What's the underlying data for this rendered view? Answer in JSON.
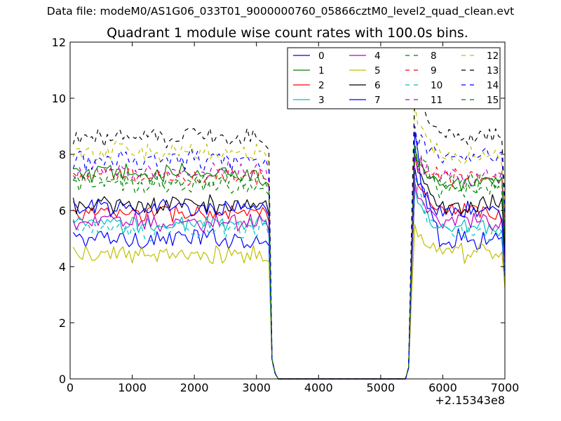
{
  "header": {
    "suptitle": "Data file: modeM0/AS1G06_033T01_9000000760_05866cztM0_level2_quad_clean.evt",
    "title": "Quadrant 1 module wise count rates with 100.0s bins."
  },
  "chart_data": {
    "type": "line",
    "title": "Quadrant 1 module wise count rates with 100.0s bins.",
    "xlabel": "",
    "ylabel": "",
    "x_offset_label": "+2.15343e8",
    "xlim": [
      0,
      7000
    ],
    "ylim": [
      0,
      12
    ],
    "xticks": [
      0,
      1000,
      2000,
      3000,
      4000,
      5000,
      6000,
      7000
    ],
    "xtick_labels": [
      "0",
      "1000",
      "2000",
      "3000",
      "4000",
      "5000",
      "6000",
      "7000"
    ],
    "yticks": [
      0,
      2,
      4,
      6,
      8,
      10,
      12
    ],
    "ytick_labels": [
      "0",
      "2",
      "4",
      "6",
      "8",
      "10",
      "12"
    ],
    "grid": false,
    "legend_position": "top-right",
    "legend_columns": 4,
    "series": [
      {
        "name": "0",
        "color": "#0000ff",
        "dash": "solid",
        "base": 5.0,
        "amp": 0.3,
        "peak": 8.8,
        "post": 5.0
      },
      {
        "name": "1",
        "color": "#008000",
        "dash": "solid",
        "base": 7.3,
        "amp": 0.3,
        "peak": 8.3,
        "post": 6.9
      },
      {
        "name": "2",
        "color": "#ff0000",
        "dash": "solid",
        "base": 5.9,
        "amp": 0.25,
        "peak": 7.5,
        "post": 5.9
      },
      {
        "name": "3",
        "color": "#00bfbf",
        "dash": "solid",
        "base": 5.5,
        "amp": 0.25,
        "peak": 6.8,
        "post": 5.4
      },
      {
        "name": "4",
        "color": "#bf00bf",
        "dash": "solid",
        "base": 5.6,
        "amp": 0.25,
        "peak": 7.0,
        "post": 5.6
      },
      {
        "name": "5",
        "color": "#bfbf00",
        "dash": "solid",
        "base": 4.4,
        "amp": 0.25,
        "peak": 5.5,
        "post": 4.5
      },
      {
        "name": "6",
        "color": "#000000",
        "dash": "solid",
        "base": 6.2,
        "amp": 0.25,
        "peak": 8.0,
        "post": 6.2
      },
      {
        "name": "7",
        "color": "#0000ff",
        "dash": "solid",
        "base": 6.1,
        "amp": 0.25,
        "peak": 7.5,
        "post": 6.0
      },
      {
        "name": "8",
        "color": "#008000",
        "dash": "dashed",
        "base": 6.9,
        "amp": 0.25,
        "peak": 8.2,
        "post": 6.8
      },
      {
        "name": "9",
        "color": "#ff0000",
        "dash": "dashed",
        "base": 7.2,
        "amp": 0.25,
        "peak": 8.0,
        "post": 7.2
      },
      {
        "name": "10",
        "color": "#00bfbf",
        "dash": "dashed",
        "base": 5.3,
        "amp": 0.25,
        "peak": 7.3,
        "post": 5.2
      },
      {
        "name": "11",
        "color": "#bf00bf",
        "dash": "dashed",
        "base": 7.4,
        "amp": 0.25,
        "peak": 8.0,
        "post": 7.2
      },
      {
        "name": "12",
        "color": "#bfbf00",
        "dash": "dashed",
        "base": 8.1,
        "amp": 0.25,
        "peak": 9.8,
        "post": 8.0
      },
      {
        "name": "13",
        "color": "#000000",
        "dash": "dashed",
        "base": 8.6,
        "amp": 0.25,
        "peak": 10.4,
        "post": 8.7
      },
      {
        "name": "14",
        "color": "#0000ff",
        "dash": "dashed",
        "base": 7.8,
        "amp": 0.3,
        "peak": 9.0,
        "post": 8.0
      },
      {
        "name": "15",
        "color": "#008000",
        "dash": "dashed",
        "base": 7.1,
        "amp": 0.25,
        "peak": 8.4,
        "post": 7.0
      }
    ]
  }
}
